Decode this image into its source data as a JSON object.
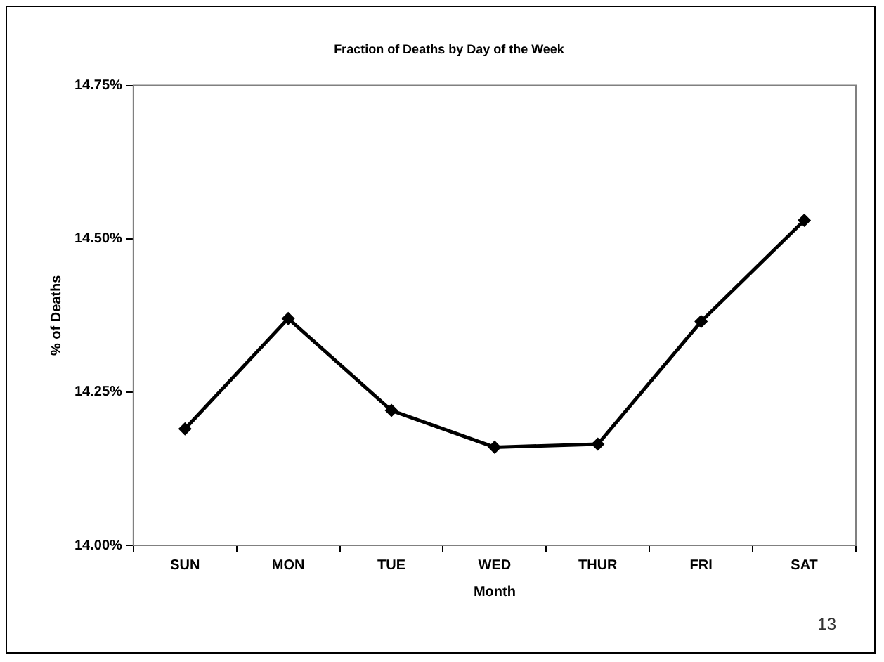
{
  "chart_data": {
    "type": "line",
    "title": "Fraction of Deaths by Day of the Week",
    "xlabel": "Month",
    "ylabel": "% of Deaths",
    "categories": [
      "SUN",
      "MON",
      "TUE",
      "WED",
      "THUR",
      "FRI",
      "SAT"
    ],
    "series": [
      {
        "color": "#000000",
        "values": [
          14.19,
          14.37,
          14.22,
          14.16,
          14.165,
          14.365,
          14.53
        ]
      }
    ],
    "ylim": [
      14.0,
      14.75
    ],
    "yticks": [
      {
        "value": 14.0,
        "label": "14.00%"
      },
      {
        "value": 14.25,
        "label": "14.25%"
      },
      {
        "value": 14.5,
        "label": "14.50%"
      },
      {
        "value": 14.75,
        "label": "14.75%"
      }
    ],
    "grid": false,
    "legend": false,
    "marker": "diamond",
    "line_style": "solid",
    "annotations": [
      "13"
    ]
  }
}
